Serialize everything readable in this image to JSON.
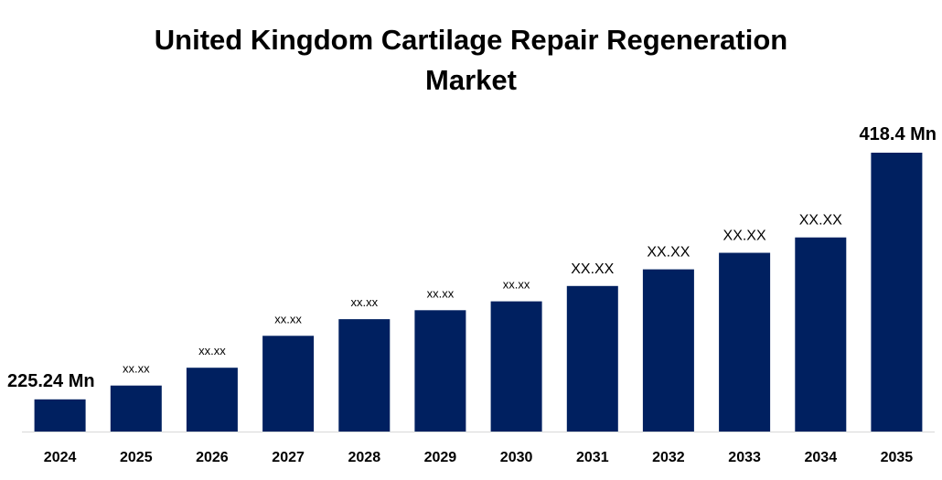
{
  "chart_data": {
    "type": "bar",
    "title_line1": "United Kingdom Cartilage Repair Regeneration",
    "title_line2": "Market",
    "xlabel": "",
    "ylabel": "",
    "categories": [
      "2024",
      "2025",
      "2026",
      "2027",
      "2028",
      "2029",
      "2030",
      "2031",
      "2032",
      "2033",
      "2034",
      "2035"
    ],
    "values": [
      225.24,
      236,
      250,
      275,
      288,
      295,
      302,
      314,
      327,
      340,
      352,
      418.4
    ],
    "data_labels": [
      "225.24 Mn",
      "xx.xx",
      "xx.xx",
      "xx.xx",
      "xx.xx",
      "xx.xx",
      "xx.xx",
      "XX.XX",
      "XX.XX",
      "XX.XX",
      "XX.XX",
      "418.4 Mn"
    ],
    "ylim": [
      200,
      418.4
    ],
    "grid": false,
    "legend": "none",
    "bar_color": "#002060",
    "axis_color": "#d9d9d9"
  }
}
